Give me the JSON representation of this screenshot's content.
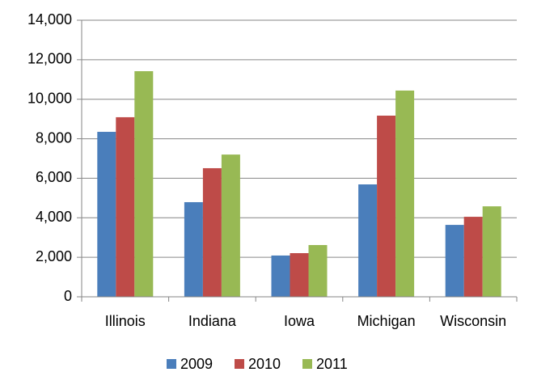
{
  "chart_data": {
    "type": "bar",
    "categories": [
      "Illinois",
      "Indiana",
      "Iowa",
      "Michigan",
      "Wisconsin"
    ],
    "series": [
      {
        "name": "2009",
        "color": "#4a7ebb",
        "values": [
          8350,
          4790,
          2090,
          5690,
          3640
        ]
      },
      {
        "name": "2010",
        "color": "#be4b48",
        "values": [
          9090,
          6510,
          2210,
          9170,
          4050
        ]
      },
      {
        "name": "2011",
        "color": "#98b954",
        "values": [
          11420,
          7200,
          2620,
          10440,
          4580
        ]
      }
    ],
    "ylim": [
      0,
      14000
    ],
    "yticks": [
      0,
      {
        "value": 2000,
        "label": "2,000"
      },
      {
        "value": 4000,
        "label": "4,000"
      },
      {
        "value": 6000,
        "label": "6,000"
      },
      {
        "value": 8000,
        "label": "8,000"
      },
      {
        "value": 10000,
        "label": "10,000"
      },
      {
        "value": 12000,
        "label": "12,000"
      },
      {
        "value": 14000,
        "label": "14,000"
      }
    ],
    "grid": true,
    "legend": "bottom"
  }
}
